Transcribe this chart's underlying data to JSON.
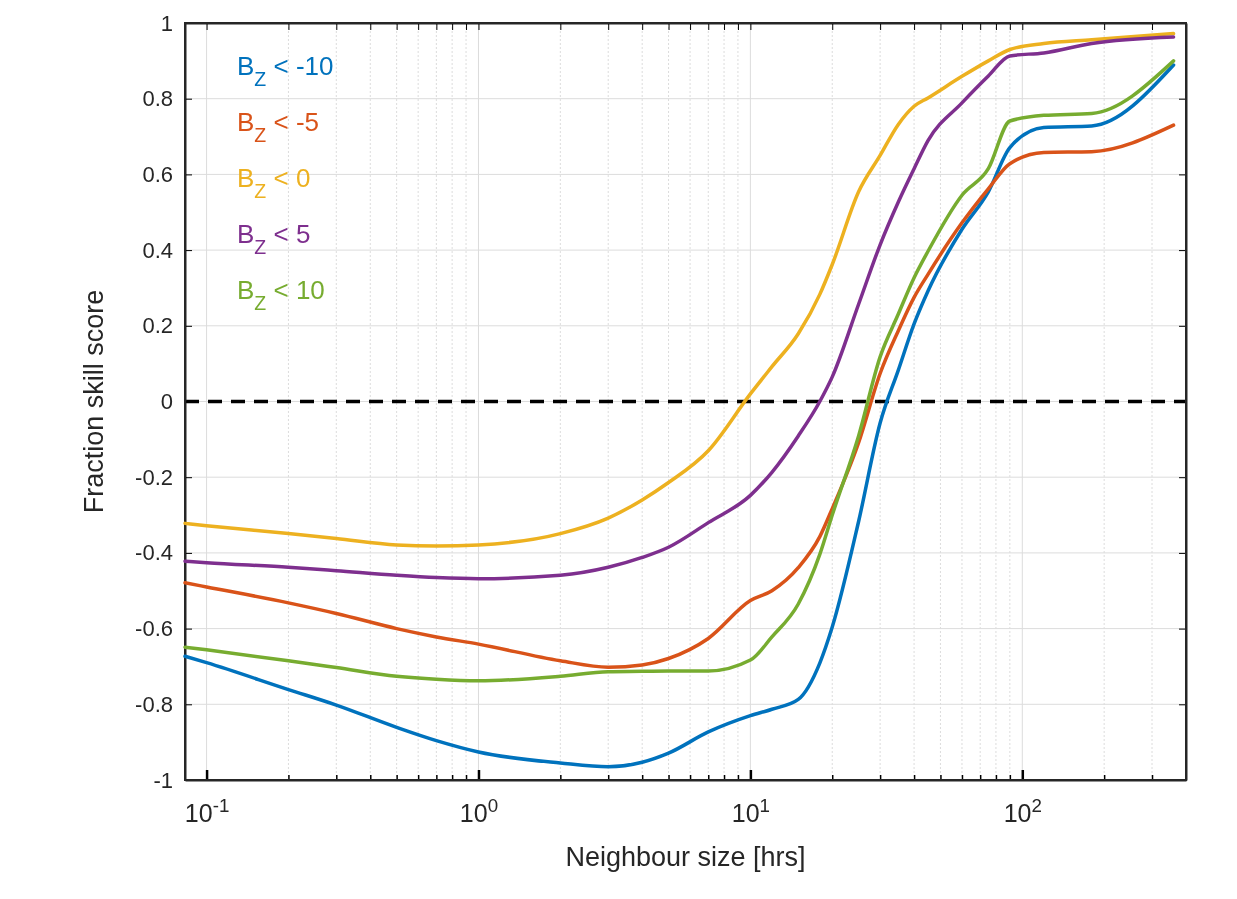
{
  "chart_data": {
    "type": "line",
    "xlabel": "Neighbour size [hrs]",
    "ylabel": "Fraction skill score",
    "log": "x",
    "grid": true,
    "legend": "top left",
    "line_style": "solid",
    "marker": "none",
    "xlim": [
      0.0833,
      400
    ],
    "ylim": [
      -1,
      1
    ],
    "xticks": [
      {
        "value": 0.1,
        "label": "10$^{-1}$"
      },
      {
        "value": 0.2,
        "label": null
      },
      {
        "value": 0.3,
        "label": null
      },
      {
        "value": 0.4,
        "label": null
      },
      {
        "value": 0.5,
        "label": null
      },
      {
        "value": 0.6,
        "label": null
      },
      {
        "value": 0.7,
        "label": null
      },
      {
        "value": 0.8,
        "label": null
      },
      {
        "value": 0.9,
        "label": null
      },
      {
        "value": 1,
        "label": "10$^{0}$"
      },
      {
        "value": 2,
        "label": null
      },
      {
        "value": 3,
        "label": null
      },
      {
        "value": 4,
        "label": null
      },
      {
        "value": 5,
        "label": null
      },
      {
        "value": 6,
        "label": null
      },
      {
        "value": 7,
        "label": null
      },
      {
        "value": 8,
        "label": null
      },
      {
        "value": 9,
        "label": null
      },
      {
        "value": 10,
        "label": "10$^{1}$"
      },
      {
        "value": 20,
        "label": null
      },
      {
        "value": 30,
        "label": null
      },
      {
        "value": 40,
        "label": null
      },
      {
        "value": 50,
        "label": null
      },
      {
        "value": 60,
        "label": null
      },
      {
        "value": 70,
        "label": null
      },
      {
        "value": 80,
        "label": null
      },
      {
        "value": 90,
        "label": null
      },
      {
        "value": 100,
        "label": "10$^{2}$"
      },
      {
        "value": 200,
        "label": null
      },
      {
        "value": 300,
        "label": null
      }
    ],
    "yticks": [
      -1,
      -0.8,
      -0.6,
      -0.4,
      -0.2,
      0,
      0.2,
      0.4,
      0.6,
      0.8,
      1
    ],
    "x": [
      0.0833,
      0.1,
      0.2,
      0.3,
      0.5,
      0.7,
      1,
      2,
      3,
      4,
      5,
      7,
      10,
      12,
      15,
      18,
      20,
      25,
      30,
      35,
      40,
      45,
      60,
      75,
      90,
      120,
      180,
      360
    ],
    "series": [
      {
        "name": "B$_{Z}$ < -10",
        "color": "#0072bd",
        "values": [
          -0.673,
          -0.69,
          -0.761,
          -0.802,
          -0.861,
          -0.896,
          -0.926,
          -0.955,
          -0.965,
          -0.953,
          -0.929,
          -0.873,
          -0.83,
          -0.813,
          -0.787,
          -0.691,
          -0.596,
          -0.317,
          -0.057,
          0.083,
          0.205,
          0.292,
          0.455,
          0.554,
          0.671,
          0.724,
          0.728,
          0.889
        ]
      },
      {
        "name": "B$_{Z}$ < -5",
        "color": "#d95319",
        "values": [
          -0.479,
          -0.49,
          -0.532,
          -0.56,
          -0.6,
          -0.622,
          -0.641,
          -0.685,
          -0.702,
          -0.696,
          -0.679,
          -0.626,
          -0.526,
          -0.5,
          -0.439,
          -0.357,
          -0.283,
          -0.109,
          0.074,
          0.187,
          0.275,
          0.336,
          0.472,
          0.562,
          0.628,
          0.658,
          0.66,
          0.73
        ]
      },
      {
        "name": "B$_{Z}$ < 0",
        "color": "#edb120",
        "values": [
          -0.322,
          -0.328,
          -0.349,
          -0.362,
          -0.379,
          -0.382,
          -0.379,
          -0.349,
          -0.308,
          -0.26,
          -0.214,
          -0.13,
          0.02,
          0.092,
          0.179,
          0.283,
          0.362,
          0.554,
          0.65,
          0.732,
          0.78,
          0.802,
          0.859,
          0.9,
          0.93,
          0.946,
          0.956,
          0.972
        ]
      },
      {
        "name": "B$_{Z}$ < 5",
        "color": "#7e2f8e",
        "values": [
          -0.422,
          -0.426,
          -0.438,
          -0.447,
          -0.459,
          -0.465,
          -0.468,
          -0.459,
          -0.438,
          -0.412,
          -0.385,
          -0.32,
          -0.248,
          -0.187,
          -0.091,
          0,
          0.065,
          0.257,
          0.414,
          0.527,
          0.615,
          0.689,
          0.789,
          0.86,
          0.913,
          0.921,
          0.946,
          0.963
        ]
      },
      {
        "name": "B$_{Z}$ < 10",
        "color": "#77ac30",
        "values": [
          -0.649,
          -0.656,
          -0.685,
          -0.703,
          -0.726,
          -0.734,
          -0.738,
          -0.726,
          -0.714,
          -0.713,
          -0.712,
          -0.712,
          -0.683,
          -0.622,
          -0.535,
          -0.404,
          -0.3,
          -0.091,
          0.118,
          0.231,
          0.327,
          0.397,
          0.545,
          0.615,
          0.741,
          0.756,
          0.761,
          0.9
        ]
      }
    ],
    "ref_lines": [
      {
        "axis": "y",
        "value": 0,
        "color": "#000000",
        "line_style": "dashed"
      }
    ]
  }
}
